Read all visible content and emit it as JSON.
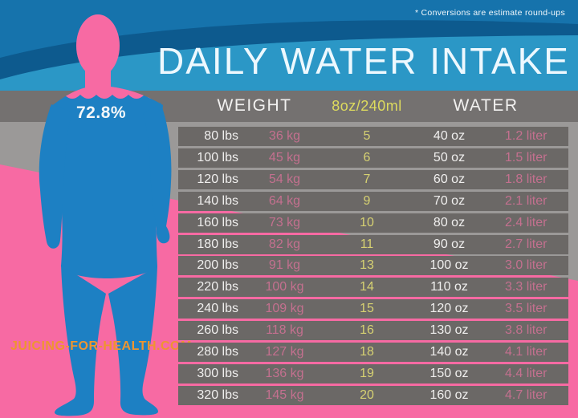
{
  "note": "* Conversions are estimate round-ups",
  "title": "DAILY WATER INTAKE",
  "figure": {
    "body_water_percent_label": "72.8%",
    "site_label": "JUICING-FOR-HEALTH.COM"
  },
  "table": {
    "headers": {
      "weight": "WEIGHT",
      "glasses": "8oz/240ml",
      "water": "WATER"
    },
    "rows": [
      {
        "lbs": "80 lbs",
        "kg": "36 kg",
        "glasses": "5",
        "oz": "40 oz",
        "liter": "1.2 liter"
      },
      {
        "lbs": "100 lbs",
        "kg": "45 kg",
        "glasses": "6",
        "oz": "50 oz",
        "liter": "1.5 liter"
      },
      {
        "lbs": "120 lbs",
        "kg": "54 kg",
        "glasses": "7",
        "oz": "60 oz",
        "liter": "1.8 liter"
      },
      {
        "lbs": "140 lbs",
        "kg": "64 kg",
        "glasses": "9",
        "oz": "70 oz",
        "liter": "2.1 liter"
      },
      {
        "lbs": "160 lbs",
        "kg": "73 kg",
        "glasses": "10",
        "oz": "80 oz",
        "liter": "2.4 liter"
      },
      {
        "lbs": "180 lbs",
        "kg": "82 kg",
        "glasses": "11",
        "oz": "90 oz",
        "liter": "2.7 liter"
      },
      {
        "lbs": "200 lbs",
        "kg": "91 kg",
        "glasses": "13",
        "oz": "100 oz",
        "liter": "3.0 liter"
      },
      {
        "lbs": "220 lbs",
        "kg": "100 kg",
        "glasses": "14",
        "oz": "110 oz",
        "liter": "3.3 liter"
      },
      {
        "lbs": "240 lbs",
        "kg": "109 kg",
        "glasses": "15",
        "oz": "120 oz",
        "liter": "3.5 liter"
      },
      {
        "lbs": "260 lbs",
        "kg": "118 kg",
        "glasses": "16",
        "oz": "130 oz",
        "liter": "3.8 liter"
      },
      {
        "lbs": "280 lbs",
        "kg": "127 kg",
        "glasses": "18",
        "oz": "140 oz",
        "liter": "4.1 liter"
      },
      {
        "lbs": "300 lbs",
        "kg": "136 kg",
        "glasses": "19",
        "oz": "150 oz",
        "liter": "4.4 liter"
      },
      {
        "lbs": "320 lbs",
        "kg": "145 kg",
        "glasses": "20",
        "oz": "160 oz",
        "liter": "4.7 liter"
      }
    ]
  },
  "colors": {
    "blue_base": "#1673ac",
    "blue_dark_swoosh": "#0d5a8e",
    "blue_light_band": "#2b97c6",
    "gray_header_band": "#747170",
    "gray_background": "#9b9998",
    "row_gray": "#6b6866",
    "pink_background": "#f76aa3",
    "figure_blue": "#1d80c3",
    "yellow_text": "#d6d172",
    "muted_pink_text": "#c4708f",
    "orange_site_text": "#ee9530"
  },
  "chart_data": {
    "type": "table",
    "title": "DAILY WATER INTAKE",
    "subtitle": "* Conversions are estimate round-ups",
    "body_water_percent": 72.8,
    "columns": [
      "Weight (lbs)",
      "Weight (kg)",
      "Glasses (8oz/240ml)",
      "Water (oz)",
      "Water (liter)"
    ],
    "rows": [
      [
        80,
        36,
        5,
        40,
        1.2
      ],
      [
        100,
        45,
        6,
        50,
        1.5
      ],
      [
        120,
        54,
        7,
        60,
        1.8
      ],
      [
        140,
        64,
        9,
        70,
        2.1
      ],
      [
        160,
        73,
        10,
        80,
        2.4
      ],
      [
        180,
        82,
        11,
        90,
        2.7
      ],
      [
        200,
        91,
        13,
        100,
        3.0
      ],
      [
        220,
        100,
        14,
        110,
        3.3
      ],
      [
        240,
        109,
        15,
        120,
        3.5
      ],
      [
        260,
        118,
        16,
        130,
        3.8
      ],
      [
        280,
        127,
        18,
        140,
        4.1
      ],
      [
        300,
        136,
        19,
        150,
        4.4
      ],
      [
        320,
        145,
        20,
        160,
        4.7
      ]
    ],
    "source": "JUICING-FOR-HEALTH.COM"
  }
}
